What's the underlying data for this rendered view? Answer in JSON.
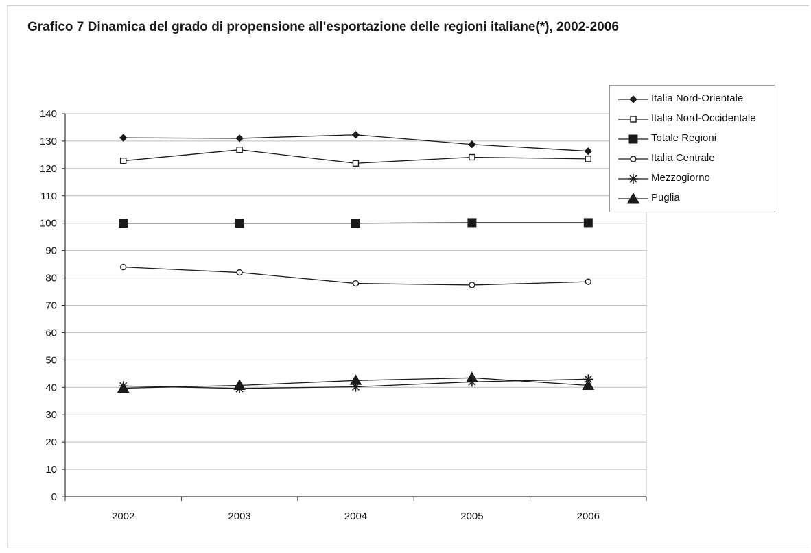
{
  "title": "Grafico 7  Dinamica del grado di propensione all'esportazione delle regioni italiane(*), 2002-2006",
  "chart_data": {
    "type": "line",
    "title": "Grafico 7  Dinamica del grado di propensione all'esportazione delle regioni italiane(*), 2002-2006",
    "xlabel": "",
    "ylabel": "",
    "x": [
      "2002",
      "2003",
      "2004",
      "2005",
      "2006"
    ],
    "ylim": [
      0,
      140
    ],
    "yticks": [
      0,
      10,
      20,
      30,
      40,
      50,
      60,
      70,
      80,
      90,
      100,
      110,
      120,
      130,
      140
    ],
    "grid": "horizontal",
    "legend_position": "top-right",
    "series": [
      {
        "name": "Italia Nord-Orientale",
        "marker": "diamond-filled",
        "values": [
          131.2,
          131,
          132.3,
          128.8,
          126.3
        ]
      },
      {
        "name": "Italia Nord-Occidentale",
        "marker": "square-open",
        "values": [
          122.8,
          126.8,
          121.9,
          124.1,
          123.5
        ]
      },
      {
        "name": "Totale Regioni",
        "marker": "square-filled",
        "values": [
          100,
          100,
          100,
          100.2,
          100.2
        ]
      },
      {
        "name": "Italia Centrale",
        "marker": "circle-open",
        "values": [
          84,
          82,
          78,
          77.4,
          78.6
        ]
      },
      {
        "name": "Mezzogiorno",
        "marker": "star",
        "values": [
          40.5,
          39.6,
          40.2,
          42,
          43
        ]
      },
      {
        "name": "Puglia",
        "marker": "triangle-filled",
        "values": [
          39.7,
          40.7,
          42.5,
          43.5,
          40.7
        ]
      }
    ]
  }
}
